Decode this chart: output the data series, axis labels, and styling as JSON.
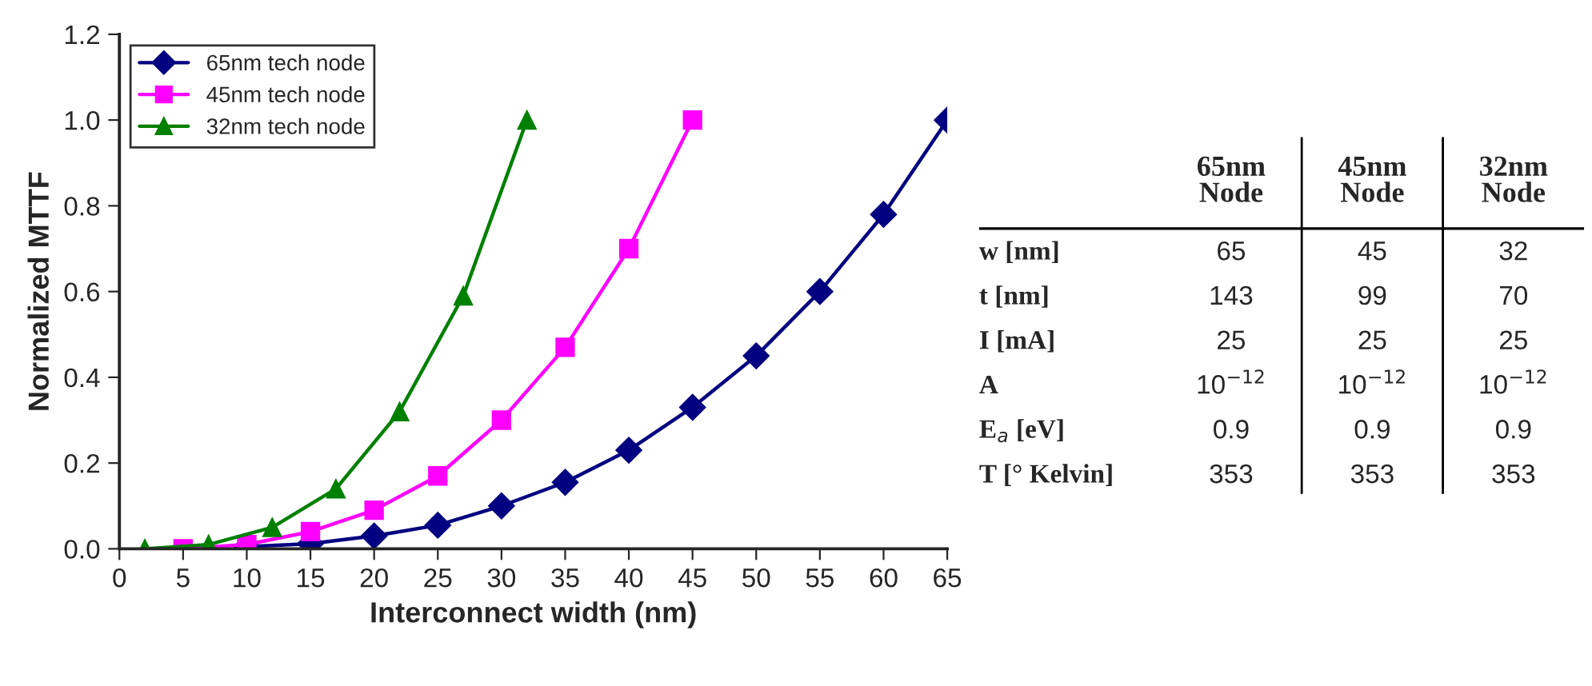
{
  "chart_data": [
    {
      "type": "line",
      "xlabel": "Interconnect width (nm)",
      "ylabel": "Normalized MTTF",
      "xlim": [
        0,
        65
      ],
      "xticks": [
        0,
        5,
        10,
        15,
        20,
        25,
        30,
        35,
        40,
        45,
        50,
        55,
        60,
        65
      ],
      "ylim": [
        0,
        1.2
      ],
      "yticks": [
        {
          "value": 0,
          "label": "0.0"
        },
        {
          "value": 0.2,
          "label": "0.2"
        },
        {
          "value": 0.4,
          "label": "0.4"
        },
        {
          "value": 0.6,
          "label": "0.6"
        },
        {
          "value": 0.8,
          "label": "0.8"
        },
        {
          "value": 1.0,
          "label": "1.0"
        },
        {
          "value": 1.2,
          "label": "1.2"
        }
      ],
      "grid": false,
      "legend": "top left",
      "series": [
        {
          "name": "65nm tech node",
          "color": "#000080",
          "marker": "diamond",
          "x": [
            10,
            15,
            20,
            25,
            30,
            35,
            40,
            45,
            50,
            55,
            60,
            65
          ],
          "values": [
            0.005,
            0.012,
            0.03,
            0.055,
            0.1,
            0.155,
            0.23,
            0.33,
            0.45,
            0.6,
            0.78,
            1.0
          ]
        },
        {
          "name": "45nm tech node",
          "color": "#ff00ff",
          "marker": "square",
          "x": [
            5,
            10,
            15,
            20,
            25,
            30,
            35,
            40,
            45
          ],
          "values": [
            0.0,
            0.01,
            0.04,
            0.09,
            0.17,
            0.3,
            0.47,
            0.7,
            1.0
          ]
        },
        {
          "name": "32nm tech node",
          "color": "#008000",
          "marker": "triangle",
          "x": [
            2,
            7,
            12,
            17,
            22,
            27,
            32
          ],
          "values": [
            0.0,
            0.01,
            0.05,
            0.14,
            0.32,
            0.59,
            1.0
          ]
        }
      ]
    },
    {
      "type": "other",
      "categories": [
        "65nm Node",
        "45nm Node",
        "32nm Node"
      ],
      "y_categories": [
        "w [nm]",
        "t [nm]",
        "I [mA]",
        "A",
        "E$_{a}$ [eV]",
        "T [° Kelvin]"
      ],
      "cell_labels": [
        [
          "65",
          "45",
          "32"
        ],
        [
          "143",
          "99",
          "70"
        ],
        [
          "25",
          "25",
          "25"
        ],
        [
          "10$^{−12}$",
          "10$^{−12}$",
          "10$^{−12}$"
        ],
        [
          "0.9",
          "0.9",
          "0.9"
        ],
        [
          "353",
          "353",
          "353"
        ]
      ]
    }
  ]
}
